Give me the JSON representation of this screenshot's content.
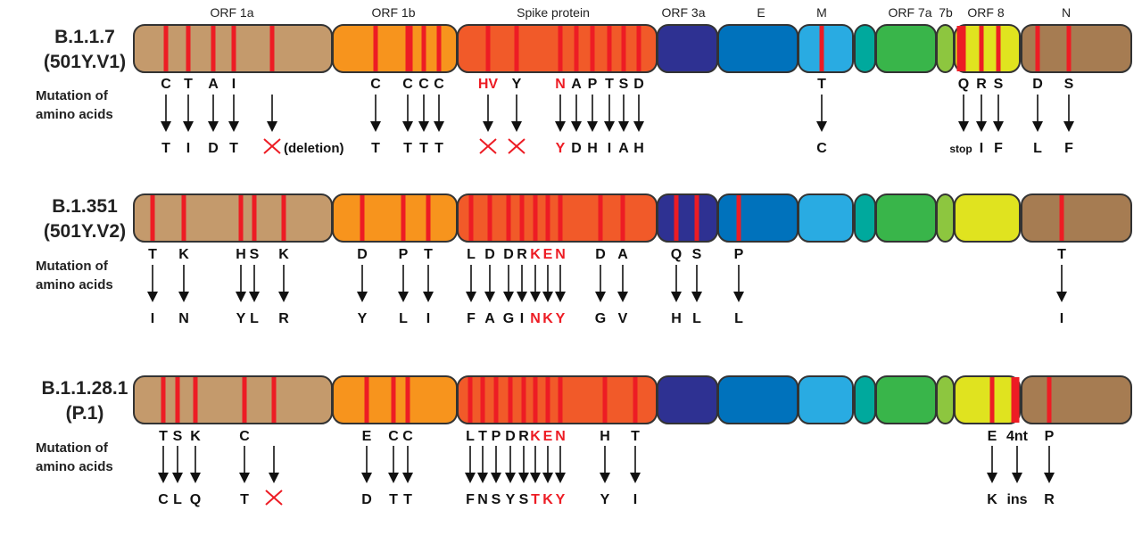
{
  "colors": {
    "mutation": "#ed1c24",
    "segments": [
      "#c49a6c",
      "#f7941d",
      "#f15a29",
      "#2e3192",
      "#0072bc",
      "#29abe2",
      "#00a99d",
      "#39b54a",
      "#8dc63f",
      "#e0e31f",
      "#a67c52"
    ]
  },
  "gene_headers": [
    "ORF 1a",
    "ORF 1b",
    "Spike protein",
    "ORF 3a",
    "E",
    "M",
    "ORF 7a",
    "7b",
    "ORF 8",
    "N"
  ],
  "side_label": [
    "Mutation of",
    "amino acids"
  ],
  "deletion_label": "(deletion)",
  "deletion_icon": "red-x-icon",
  "variants": [
    {
      "name": "B.1.1.7",
      "alias": "(501Y.V1)",
      "mutations": [
        {
          "from": "C",
          "to": "T"
        },
        {
          "from": "T",
          "to": "I"
        },
        {
          "from": "A",
          "to": "D"
        },
        {
          "from": "I",
          "to": "T"
        },
        {
          "from": "",
          "to": "✕",
          "deletion": true,
          "note": "(deletion)"
        },
        {
          "from": "C",
          "to": "T"
        },
        {
          "from": "C",
          "to": "T"
        },
        {
          "from": "C",
          "to": "T"
        },
        {
          "from": "C",
          "to": "T"
        },
        {
          "from": "HV",
          "to": "✕",
          "from_red": true,
          "deletion": true
        },
        {
          "from": "Y",
          "to": "✕",
          "deletion": true
        },
        {
          "from": "N",
          "to": "Y",
          "from_red": true,
          "to_red": true
        },
        {
          "from": "A",
          "to": "D"
        },
        {
          "from": "P",
          "to": "H"
        },
        {
          "from": "T",
          "to": "I"
        },
        {
          "from": "S",
          "to": "A"
        },
        {
          "from": "D",
          "to": "H"
        },
        {
          "from": "T",
          "to": "C"
        },
        {
          "from": "Q",
          "to": "stop"
        },
        {
          "from": "R",
          "to": "I"
        },
        {
          "from": "S",
          "to": "F"
        },
        {
          "from": "D",
          "to": "L"
        },
        {
          "from": "S",
          "to": "F"
        }
      ]
    },
    {
      "name": "B.1.351",
      "alias": "(501Y.V2)",
      "mutations": [
        {
          "from": "T",
          "to": "I"
        },
        {
          "from": "K",
          "to": "N"
        },
        {
          "from": "H",
          "to": "Y"
        },
        {
          "from": "S",
          "to": "L"
        },
        {
          "from": "K",
          "to": "R"
        },
        {
          "from": "D",
          "to": "Y"
        },
        {
          "from": "P",
          "to": "L"
        },
        {
          "from": "T",
          "to": "I"
        },
        {
          "from": "L",
          "to": "F"
        },
        {
          "from": "D",
          "to": "A"
        },
        {
          "from": "D",
          "to": "G"
        },
        {
          "from": "R",
          "to": "I"
        },
        {
          "from": "K",
          "to": "N",
          "from_red": true,
          "to_red": true
        },
        {
          "from": "E",
          "to": "K",
          "from_red": true,
          "to_red": true
        },
        {
          "from": "N",
          "to": "Y",
          "from_red": true,
          "to_red": true
        },
        {
          "from": "D",
          "to": "G"
        },
        {
          "from": "A",
          "to": "V"
        },
        {
          "from": "Q",
          "to": "H"
        },
        {
          "from": "S",
          "to": "L"
        },
        {
          "from": "P",
          "to": "L"
        },
        {
          "from": "T",
          "to": "I"
        }
      ]
    },
    {
      "name": "B.1.1.28.1",
      "alias": "(P.1)",
      "mutations": [
        {
          "from": "T",
          "to": "C"
        },
        {
          "from": "S",
          "to": "L"
        },
        {
          "from": "K",
          "to": "Q"
        },
        {
          "from": "C",
          "to": "T"
        },
        {
          "from": "",
          "to": "✕",
          "deletion": true
        },
        {
          "from": "E",
          "to": "D"
        },
        {
          "from": "C",
          "to": "T"
        },
        {
          "from": "C",
          "to": "T"
        },
        {
          "from": "L",
          "to": "F"
        },
        {
          "from": "T",
          "to": "N"
        },
        {
          "from": "P",
          "to": "S"
        },
        {
          "from": "D",
          "to": "Y"
        },
        {
          "from": "R",
          "to": "S"
        },
        {
          "from": "K",
          "to": "T",
          "from_red": true,
          "to_red": true
        },
        {
          "from": "E",
          "to": "K",
          "from_red": true,
          "to_red": true
        },
        {
          "from": "N",
          "to": "Y",
          "from_red": true,
          "to_red": true
        },
        {
          "from": "H",
          "to": "Y"
        },
        {
          "from": "T",
          "to": "I"
        },
        {
          "from": "E",
          "to": "K"
        },
        {
          "from": "4nt",
          "to": "ins"
        },
        {
          "from": "P",
          "to": "R"
        }
      ]
    }
  ]
}
